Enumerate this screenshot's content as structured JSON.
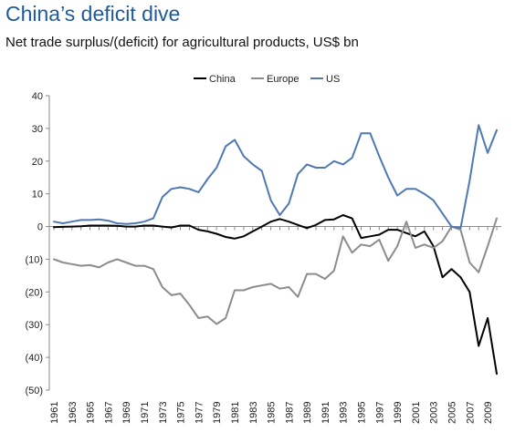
{
  "chart_data": {
    "type": "line",
    "title": "China’s deficit dive",
    "subtitle": "Net trade surplus/(deficit) for agricultural products, US$ bn",
    "xlabel": "",
    "ylabel": "",
    "ylim": [
      -50,
      40
    ],
    "yticks": [
      40,
      30,
      20,
      10,
      0,
      -10,
      -20,
      -30,
      -40,
      -50
    ],
    "ytick_labels": [
      "40",
      "30",
      "20",
      "10",
      "0",
      "(10)",
      "(20)",
      "(30)",
      "(40)",
      "(50)"
    ],
    "x": [
      1961,
      1962,
      1963,
      1964,
      1965,
      1966,
      1967,
      1968,
      1969,
      1970,
      1971,
      1972,
      1973,
      1974,
      1975,
      1976,
      1977,
      1978,
      1979,
      1980,
      1981,
      1982,
      1983,
      1984,
      1985,
      1986,
      1987,
      1988,
      1989,
      1990,
      1991,
      1992,
      1993,
      1994,
      1995,
      1996,
      1997,
      1998,
      1999,
      2000,
      2001,
      2002,
      2003,
      2004,
      2005,
      2006,
      2007,
      2008,
      2009,
      2010
    ],
    "xtick_labels": [
      "1961",
      "1963",
      "1965",
      "1967",
      "1969",
      "1971",
      "1973",
      "1975",
      "1977",
      "1979",
      "1981",
      "1983",
      "1985",
      "1987",
      "1989",
      "1991",
      "1993",
      "1995",
      "1997",
      "1999",
      "2001",
      "2003",
      "2005",
      "2007",
      "2009"
    ],
    "grid": false,
    "legend_position": "top-center",
    "series": [
      {
        "name": "China",
        "color": "#000000",
        "values": [
          -0.2,
          -0.1,
          0,
          0.1,
          0.3,
          0.3,
          0.3,
          0.2,
          0,
          0,
          0.3,
          0.3,
          0,
          -0.3,
          0.3,
          0.3,
          -1,
          -1.5,
          -2.2,
          -3.2,
          -3.7,
          -3,
          -1.5,
          0,
          1.5,
          2.3,
          1.5,
          0.5,
          -0.5,
          0.5,
          2,
          2.2,
          3.5,
          2.5,
          -3.5,
          -3,
          -2.5,
          -1,
          -1,
          -2,
          -3,
          -1.5,
          -6,
          -15.5,
          -13,
          -15.5,
          -20,
          -36.5,
          -28,
          -45
        ]
      },
      {
        "name": "Europe",
        "color": "#8c8c8c",
        "values": [
          -10,
          -11,
          -11.5,
          -12,
          -11.8,
          -12.5,
          -11,
          -10,
          -11,
          -12,
          -12,
          -13,
          -18.5,
          -21,
          -20.5,
          -24,
          -28,
          -27.5,
          -29.8,
          -28,
          -19.5,
          -19.5,
          -18.5,
          -18,
          -17.5,
          -19,
          -18.5,
          -21.5,
          -14.5,
          -14.5,
          -16,
          -13.5,
          -3,
          -8,
          -5.5,
          -6,
          -4,
          -10.5,
          -6,
          1.5,
          -6.5,
          -5.5,
          -6.5,
          -4.5,
          0,
          -1,
          -11,
          -14,
          -6,
          2.5
        ]
      },
      {
        "name": "US",
        "color": "#4f78b5",
        "values": [
          1.5,
          1,
          1.5,
          2,
          2,
          2.2,
          1.8,
          1,
          0.8,
          1,
          1.5,
          2.5,
          9,
          11.5,
          12,
          11.5,
          10.5,
          14.5,
          18,
          24.5,
          26.5,
          21.5,
          19,
          17,
          8,
          3.5,
          7,
          16,
          19,
          18,
          18,
          20,
          19,
          21,
          28.5,
          28.5,
          21.5,
          15,
          9.5,
          11.5,
          11.5,
          10,
          8,
          4,
          0,
          -0.5,
          14,
          31,
          22.5,
          29.5
        ]
      }
    ]
  }
}
